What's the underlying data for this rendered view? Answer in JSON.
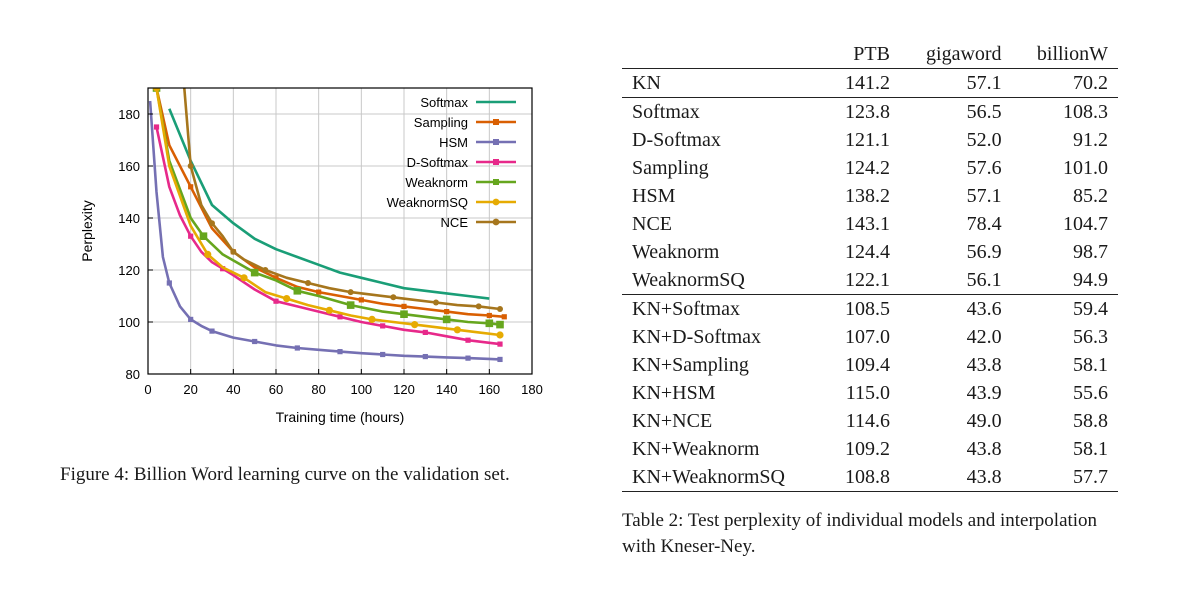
{
  "figure": {
    "caption": "Figure 4: Billion Word learning curve on the validation set."
  },
  "chart_data": {
    "type": "line",
    "xlabel": "Training time (hours)",
    "ylabel": "Perplexity",
    "xlim": [
      0,
      180
    ],
    "ylim": [
      80,
      190
    ],
    "xticks": [
      0,
      20,
      40,
      60,
      80,
      100,
      120,
      140,
      160,
      180
    ],
    "yticks": [
      80,
      100,
      120,
      140,
      160,
      180
    ],
    "grid": true,
    "legend_position": "top-right",
    "series": [
      {
        "name": "Softmax",
        "color": "#1a9e77",
        "x": [
          10,
          20,
          30,
          40,
          50,
          60,
          70,
          80,
          90,
          100,
          110,
          120,
          130,
          140,
          150,
          160
        ],
        "y": [
          182,
          162,
          145,
          138,
          132,
          128,
          125,
          122,
          119,
          117,
          115,
          113,
          112,
          111,
          110,
          109
        ]
      },
      {
        "name": "Sampling",
        "color": "#d95f02",
        "x": [
          4,
          10,
          20,
          30,
          40,
          50,
          60,
          70,
          80,
          90,
          100,
          110,
          120,
          130,
          140,
          150,
          160,
          167
        ],
        "y": [
          190,
          168,
          152,
          136,
          127,
          121,
          117,
          113.5,
          111.5,
          110,
          108.5,
          107,
          106,
          105,
          104,
          103,
          102.5,
          102
        ]
      },
      {
        "name": "HSM",
        "color": "#7570b3",
        "x": [
          1,
          4,
          7,
          10,
          15,
          20,
          25,
          30,
          40,
          50,
          60,
          70,
          80,
          90,
          100,
          110,
          120,
          130,
          140,
          150,
          160,
          165
        ],
        "y": [
          185,
          150,
          125,
          115,
          106,
          101,
          98.5,
          96.5,
          94,
          92.5,
          91,
          90,
          89.3,
          88.6,
          88,
          87.5,
          87,
          86.7,
          86.4,
          86.1,
          85.8,
          85.6
        ]
      },
      {
        "name": "D-Softmax",
        "color": "#e7298a",
        "x": [
          4,
          10,
          15,
          20,
          25,
          30,
          35,
          40,
          50,
          60,
          70,
          80,
          90,
          100,
          110,
          120,
          130,
          140,
          150,
          160,
          165
        ],
        "y": [
          175,
          152,
          141,
          133,
          127,
          123,
          120.5,
          118,
          112.5,
          108,
          106,
          104,
          102,
          100,
          98.5,
          97,
          96,
          94.5,
          93,
          92,
          91.5
        ]
      },
      {
        "name": "Weaknorm",
        "color": "#66a61e",
        "x": [
          4,
          10,
          20,
          26,
          35,
          50,
          60,
          70,
          80,
          95,
          110,
          120,
          130,
          140,
          150,
          160,
          165
        ],
        "y": [
          190,
          162,
          140,
          133,
          126,
          119,
          116,
          112,
          110,
          106.5,
          104,
          103,
          102,
          101,
          100,
          99.5,
          99
        ]
      },
      {
        "name": "WeaknormSQ",
        "color": "#e6ab02",
        "x": [
          4,
          10,
          20,
          28,
          35,
          45,
          55,
          65,
          75,
          85,
          95,
          105,
          115,
          125,
          135,
          145,
          155,
          165
        ],
        "y": [
          190,
          160,
          137,
          126,
          121,
          117,
          111.5,
          109,
          106.5,
          104.5,
          102.5,
          101,
          100,
          99,
          98,
          97,
          96,
          95
        ]
      },
      {
        "name": "NCE",
        "color": "#a6761d",
        "x": [
          17,
          20,
          25,
          30,
          35,
          40,
          45,
          55,
          65,
          75,
          85,
          95,
          105,
          115,
          125,
          135,
          145,
          155,
          165
        ],
        "y": [
          190,
          160,
          145,
          138,
          133,
          127,
          124,
          120,
          117,
          115,
          113,
          111.5,
          110.5,
          109.5,
          108.5,
          107.5,
          106.5,
          106,
          105
        ]
      }
    ]
  },
  "table": {
    "caption": "Table 2: Test perplexity of individual models and interpolation with Kneser-Ney.",
    "columns": [
      "",
      "PTB",
      "gigaword",
      "billionW"
    ],
    "rows": [
      {
        "model": "KN",
        "ptb": "141.2",
        "giga": "57.1",
        "billion": "70.2"
      },
      {
        "model": "Softmax",
        "ptb": "123.8",
        "giga": "56.5",
        "billion": "108.3"
      },
      {
        "model": "D-Softmax",
        "ptb": "121.1",
        "giga": "52.0",
        "billion": "91.2"
      },
      {
        "model": "Sampling",
        "ptb": "124.2",
        "giga": "57.6",
        "billion": "101.0"
      },
      {
        "model": "HSM",
        "ptb": "138.2",
        "giga": "57.1",
        "billion": "85.2"
      },
      {
        "model": "NCE",
        "ptb": "143.1",
        "giga": "78.4",
        "billion": "104.7"
      },
      {
        "model": "Weaknorm",
        "ptb": "124.4",
        "giga": "56.9",
        "billion": "98.7"
      },
      {
        "model": "WeaknormSQ",
        "ptb": "122.1",
        "giga": "56.1",
        "billion": "94.9"
      },
      {
        "model": "KN+Softmax",
        "ptb": "108.5",
        "giga": "43.6",
        "billion": "59.4"
      },
      {
        "model": "KN+D-Softmax",
        "ptb": "107.0",
        "giga": "42.0",
        "billion": "56.3"
      },
      {
        "model": "KN+Sampling",
        "ptb": "109.4",
        "giga": "43.8",
        "billion": "58.1"
      },
      {
        "model": "KN+HSM",
        "ptb": "115.0",
        "giga": "43.9",
        "billion": "55.6"
      },
      {
        "model": "KN+NCE",
        "ptb": "114.6",
        "giga": "49.0",
        "billion": "58.8"
      },
      {
        "model": "KN+Weaknorm",
        "ptb": "109.2",
        "giga": "43.8",
        "billion": "58.1"
      },
      {
        "model": "KN+WeaknormSQ",
        "ptb": "108.8",
        "giga": "43.8",
        "billion": "57.7"
      }
    ]
  }
}
